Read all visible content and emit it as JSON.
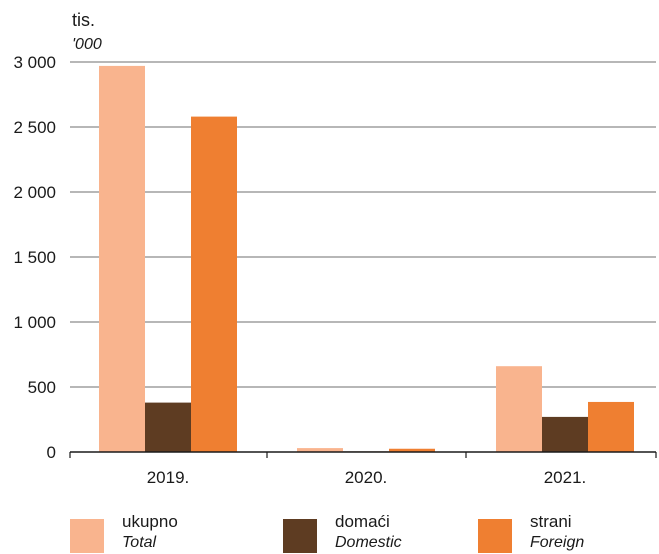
{
  "chart_data": {
    "type": "bar",
    "unit_label": "tis.",
    "unit_label_en": "'000",
    "categories": [
      "2019.",
      "2020.",
      "2021."
    ],
    "series": [
      {
        "name": "ukupno",
        "name_en": "Total",
        "color": "#f9b48e",
        "values": [
          2970,
          30,
          660
        ]
      },
      {
        "name": "domaći",
        "name_en": "Domestic",
        "color": "#5e3c22",
        "values": [
          380,
          5,
          270
        ]
      },
      {
        "name": "strani",
        "name_en": "Foreign",
        "color": "#ef7f31",
        "values": [
          2580,
          25,
          385
        ]
      }
    ],
    "y_ticks": [
      "3 000",
      "2 500",
      "2 000",
      "1 500",
      "1 000",
      "500",
      "0"
    ],
    "y_tick_values": [
      3000,
      2500,
      2000,
      1500,
      1000,
      500,
      0
    ],
    "ylim": [
      0,
      3000
    ],
    "grid": true,
    "legend_position": "bottom"
  }
}
